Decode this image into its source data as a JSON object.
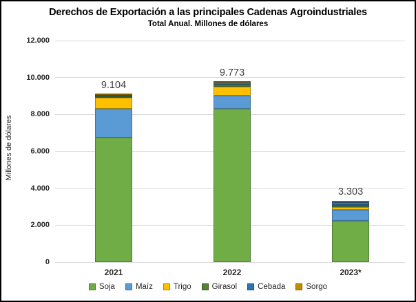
{
  "chart": {
    "title": "Derechos de Exportación a las principales Cadenas Agroindustriales",
    "subtitle": "Total Anual. Millones de dólares",
    "y_axis_title": "Millones de dólares"
  },
  "chart_data": {
    "type": "bar",
    "stacked": true,
    "title": "Derechos de Exportación a las principales Cadenas Agroindustriales",
    "subtitle": "Total Anual. Millones de dólares",
    "xlabel": "",
    "ylabel": "Millones de dólares",
    "categories": [
      "2021",
      "2022",
      "2023*"
    ],
    "totals": [
      9104,
      9773,
      3303
    ],
    "total_labels": [
      "9.104",
      "9.773",
      "3.303"
    ],
    "series": [
      {
        "name": "Soja",
        "color": "#70AD47",
        "border": "#507E32",
        "values": [
          6730,
          8300,
          2240
        ]
      },
      {
        "name": "Maíz",
        "color": "#5B9BD5",
        "border": "#41719C",
        "values": [
          1570,
          710,
          590
        ]
      },
      {
        "name": "Trigo",
        "color": "#FFC000",
        "border": "#A98600",
        "values": [
          600,
          490,
          170
        ]
      },
      {
        "name": "Girasol",
        "color": "#538135",
        "border": "#375623",
        "values": [
          75,
          100,
          90
        ]
      },
      {
        "name": "Cebada",
        "color": "#2E75B6",
        "border": "#1F4E79",
        "values": [
          90,
          120,
          150
        ]
      },
      {
        "name": "Sorgo",
        "color": "#BF8F00",
        "border": "#7F5F00",
        "values": [
          39,
          53,
          63
        ]
      }
    ],
    "ylim": [
      0,
      12000
    ],
    "y_ticks": [
      12000,
      10000,
      8000,
      6000,
      4000,
      2000,
      0
    ],
    "y_tick_labels": [
      "12.000",
      "10.000",
      "8.000",
      "6.000",
      "4.000",
      "2.000",
      "0"
    ],
    "grid": "horizontal",
    "legend_position": "bottom"
  }
}
